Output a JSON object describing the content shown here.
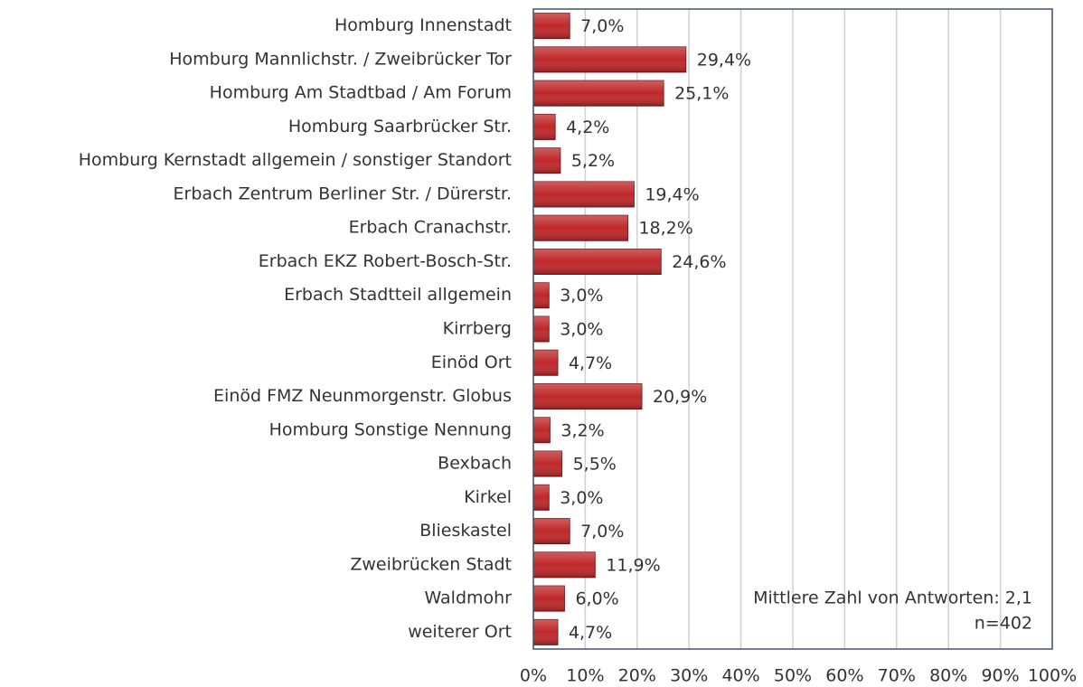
{
  "chart_data": {
    "type": "bar",
    "orientation": "horizontal",
    "categories": [
      "Homburg Innenstadt",
      "Homburg Mannlichstr. / Zweibrücker Tor",
      "Homburg Am Stadtbad / Am Forum",
      "Homburg Saarbrücker Str.",
      "Homburg Kernstadt allgemein / sonstiger Standort",
      "Erbach Zentrum Berliner Str. / Dürerstr.",
      "Erbach Cranachstr.",
      "Erbach EKZ Robert-Bosch-Str.",
      "Erbach Stadtteil allgemein",
      "Kirrberg",
      "Einöd Ort",
      "Einöd FMZ Neunmorgenstr. Globus",
      "Homburg Sonstige Nennung",
      "Bexbach",
      "Kirkel",
      "Blieskastel",
      "Zweibrücken Stadt",
      "Waldmohr",
      "weiterer Ort"
    ],
    "values": [
      7.0,
      29.4,
      25.1,
      4.2,
      5.2,
      19.4,
      18.2,
      24.6,
      3.0,
      3.0,
      4.7,
      20.9,
      3.2,
      5.5,
      3.0,
      7.0,
      11.9,
      6.0,
      4.7
    ],
    "value_labels": [
      "7,0%",
      "29,4%",
      "25,1%",
      "4,2%",
      "5,2%",
      "19,4%",
      "18,2%",
      "24,6%",
      "3,0%",
      "3,0%",
      "4,7%",
      "20,9%",
      "3,2%",
      "5,5%",
      "3,0%",
      "7,0%",
      "11,9%",
      "6,0%",
      "4,7%"
    ],
    "color": "#c0282a",
    "xlim": [
      0,
      100
    ],
    "xticks": [
      {
        "value": 0,
        "label": "0%"
      },
      {
        "value": 10,
        "label": "10%"
      },
      {
        "value": 20,
        "label": "20%"
      },
      {
        "value": 30,
        "label": "30%"
      },
      {
        "value": 40,
        "label": "40%"
      },
      {
        "value": 50,
        "label": "50%"
      },
      {
        "value": 60,
        "label": "60%"
      },
      {
        "value": 70,
        "label": "70%"
      },
      {
        "value": 80,
        "label": "80%"
      },
      {
        "value": 90,
        "label": "90%"
      },
      {
        "value": 100,
        "label": "100%"
      }
    ],
    "grid": true,
    "annotations": [
      "Mittlere Zahl von Antworten: 2,1",
      "n=402"
    ]
  }
}
